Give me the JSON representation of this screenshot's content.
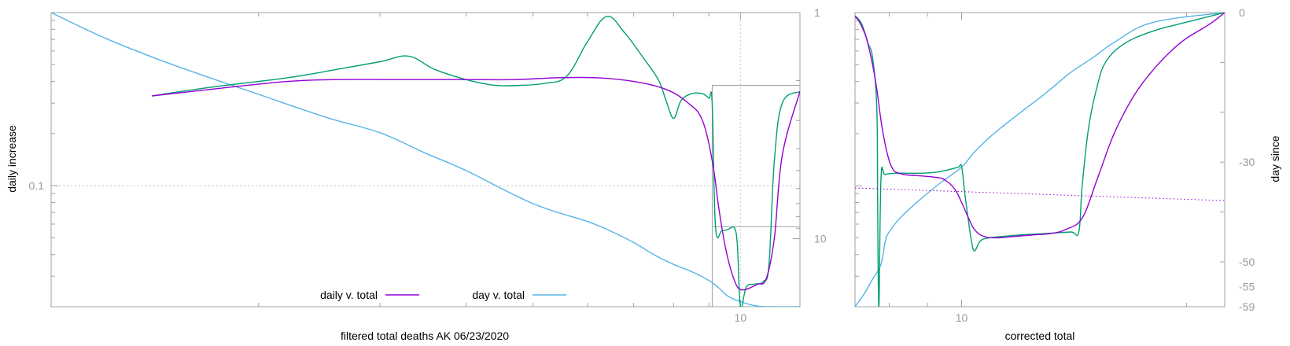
{
  "colors": {
    "axis": "#a0a0a0",
    "tick_text": "#9a9a9a",
    "label_text": "#000000",
    "daily": "#9400d3",
    "day": "#56b4e9",
    "filtered": "#009e73",
    "gridline": "#c8c8c8"
  },
  "chart_data": [
    {
      "type": "line",
      "panel": "left",
      "xlabel": "filtered total deaths AK 06/23/2020",
      "ylabel": "daily increase",
      "y2label": "",
      "xscale": "log",
      "yscale": "log",
      "y2scale": "log",
      "xlim": [
        1.0,
        12.2
      ],
      "ylim": [
        0.02,
        1.0
      ],
      "y2lim": [
        1.0,
        20.0
      ],
      "x_ticks": [
        {
          "value": 10,
          "label": "10"
        }
      ],
      "y_ticks": [
        {
          "value": 0.1,
          "label": "0.1"
        }
      ],
      "y2_ticks": [
        {
          "value": 1,
          "label": "1"
        },
        {
          "value": 10,
          "label": "10"
        }
      ],
      "grid": {
        "x": [
          10
        ],
        "y": [
          0.1
        ]
      },
      "legend": {
        "position": "bottom-center",
        "entries": [
          {
            "label": "daily v. total",
            "series": "daily"
          },
          {
            "label": "day v. total",
            "series": "day"
          }
        ]
      },
      "series": [
        {
          "name": "daily v. total",
          "key": "daily",
          "axis": "y",
          "x": [
            1.4,
            1.7,
            2.2,
            2.6,
            3.2,
            4.0,
            4.7,
            5.4,
            6.2,
            7.0,
            7.8,
            8.4,
            8.8,
            9.1,
            9.3,
            9.5,
            9.7,
            9.9,
            10.1,
            10.4,
            10.6,
            10.9,
            11.2,
            11.5,
            12.2
          ],
          "y": [
            0.33,
            0.36,
            0.4,
            0.41,
            0.41,
            0.41,
            0.41,
            0.42,
            0.42,
            0.4,
            0.36,
            0.3,
            0.24,
            0.14,
            0.075,
            0.045,
            0.032,
            0.026,
            0.025,
            0.026,
            0.027,
            0.029,
            0.05,
            0.15,
            0.35
          ]
        },
        {
          "name": "",
          "key": "filtered",
          "axis": "y",
          "x": [
            1.4,
            1.7,
            2.2,
            2.6,
            3.0,
            3.3,
            3.6,
            4.0,
            4.4,
            4.8,
            5.2,
            5.6,
            6.0,
            6.4,
            6.8,
            7.2,
            7.6,
            7.8,
            8.0,
            8.2,
            8.5,
            8.8,
            9.0,
            9.1,
            9.2,
            9.4,
            9.6,
            9.8,
            9.9,
            10.0,
            10.2,
            10.5,
            10.8,
            11.0,
            11.2,
            11.5,
            12.2
          ],
          "y": [
            0.33,
            0.37,
            0.42,
            0.47,
            0.52,
            0.56,
            0.47,
            0.41,
            0.38,
            0.38,
            0.39,
            0.43,
            0.68,
            0.95,
            0.76,
            0.56,
            0.41,
            0.31,
            0.245,
            0.31,
            0.34,
            0.34,
            0.32,
            0.3,
            0.058,
            0.055,
            0.056,
            0.057,
            0.045,
            0.02,
            0.026,
            0.027,
            0.028,
            0.035,
            0.14,
            0.3,
            0.35
          ]
        },
        {
          "name": "day v. total",
          "key": "day",
          "axis": "y2",
          "x": [
            1.0,
            1.2,
            1.5,
            2.0,
            2.5,
            3.0,
            3.5,
            4.0,
            5.0,
            6.0,
            6.5,
            7.0,
            7.5,
            8.0,
            8.5,
            9.0,
            9.3,
            9.6,
            10.0,
            10.5,
            11.0,
            12.2
          ],
          "y": [
            1.0,
            1.3,
            1.7,
            2.3,
            2.9,
            3.4,
            4.2,
            5.0,
            7.0,
            8.4,
            9.3,
            10.4,
            11.8,
            13.0,
            14.0,
            15.3,
            16.5,
            18.0,
            19.0,
            19.8,
            20.0,
            20.0
          ]
        }
      ]
    },
    {
      "type": "line",
      "panel": "right",
      "xlabel": "corrected total",
      "ylabel": "",
      "y2label": "day since",
      "xscale": "log",
      "yscale": "log",
      "xlim": [
        7.2,
        22.5
      ],
      "ylim": [
        0.02,
        1.0
      ],
      "y2lim": [
        -59,
        0
      ],
      "x_ticks": [
        {
          "value": 10,
          "label": "10"
        }
      ],
      "y2_ticks": [
        {
          "value": 0,
          "label": "0"
        },
        {
          "value": -30,
          "label": "-30"
        },
        {
          "value": -50,
          "label": "-50"
        },
        {
          "value": -55,
          "label": "-55"
        },
        {
          "value": -59,
          "label": "-59"
        }
      ],
      "series": [
        {
          "name": "",
          "key": "daily",
          "axis": "y",
          "x": [
            7.2,
            7.3,
            7.45,
            7.6,
            7.7,
            7.85,
            8.05,
            8.3,
            8.8,
            9.2,
            9.5,
            9.8,
            10.0,
            10.2,
            10.4,
            10.7,
            11.2,
            11.8,
            12.5,
            13.2,
            13.8,
            14.5,
            15.2,
            16.0,
            17.0,
            18.0,
            19.0,
            20.0,
            21.5,
            22.5
          ],
          "y": [
            0.95,
            0.88,
            0.72,
            0.5,
            0.36,
            0.2,
            0.13,
            0.117,
            0.114,
            0.112,
            0.108,
            0.095,
            0.08,
            0.066,
            0.056,
            0.051,
            0.05,
            0.051,
            0.052,
            0.053,
            0.056,
            0.065,
            0.11,
            0.2,
            0.33,
            0.46,
            0.59,
            0.71,
            0.86,
            1.0
          ]
        },
        {
          "name": "",
          "key": "filtered",
          "axis": "y",
          "x": [
            7.2,
            7.35,
            7.5,
            7.6,
            7.7,
            7.72,
            7.75,
            7.8,
            7.9,
            8.2,
            8.8,
            9.3,
            9.7,
            9.9,
            10.0,
            10.1,
            10.2,
            10.3,
            10.4,
            10.6,
            10.9,
            11.4,
            12.0,
            13.0,
            14.0,
            14.35,
            14.5,
            14.8,
            15.2,
            15.6,
            16.5,
            18.0,
            20.0,
            22.5
          ],
          "y": [
            0.96,
            0.86,
            0.66,
            0.55,
            0.28,
            0.075,
            0.02,
            0.11,
            0.116,
            0.118,
            0.118,
            0.12,
            0.125,
            0.128,
            0.129,
            0.09,
            0.065,
            0.049,
            0.042,
            0.048,
            0.05,
            0.051,
            0.052,
            0.053,
            0.054,
            0.054,
            0.1,
            0.22,
            0.38,
            0.52,
            0.66,
            0.78,
            0.88,
            1.0
          ]
        },
        {
          "name": "",
          "key": "day",
          "axis": "y2",
          "x": [
            7.2,
            7.4,
            7.6,
            7.8,
            7.9,
            8.0,
            8.3,
            8.8,
            9.4,
            10.0,
            10.4,
            11.0,
            12.0,
            13.0,
            14.0,
            15.0,
            16.0,
            18.0,
            22.5
          ],
          "y": [
            -59,
            -56.5,
            -53.5,
            -50.5,
            -46,
            -44,
            -41,
            -37.5,
            -34,
            -31,
            -28,
            -24.5,
            -20,
            -16,
            -12,
            -9,
            -6,
            -2,
            0
          ]
        }
      ]
    }
  ],
  "trend_line": {
    "panel": "right",
    "from": {
      "x": 7.2,
      "y": 0.097
    },
    "to": {
      "x": 22.5,
      "y": 0.082
    }
  }
}
